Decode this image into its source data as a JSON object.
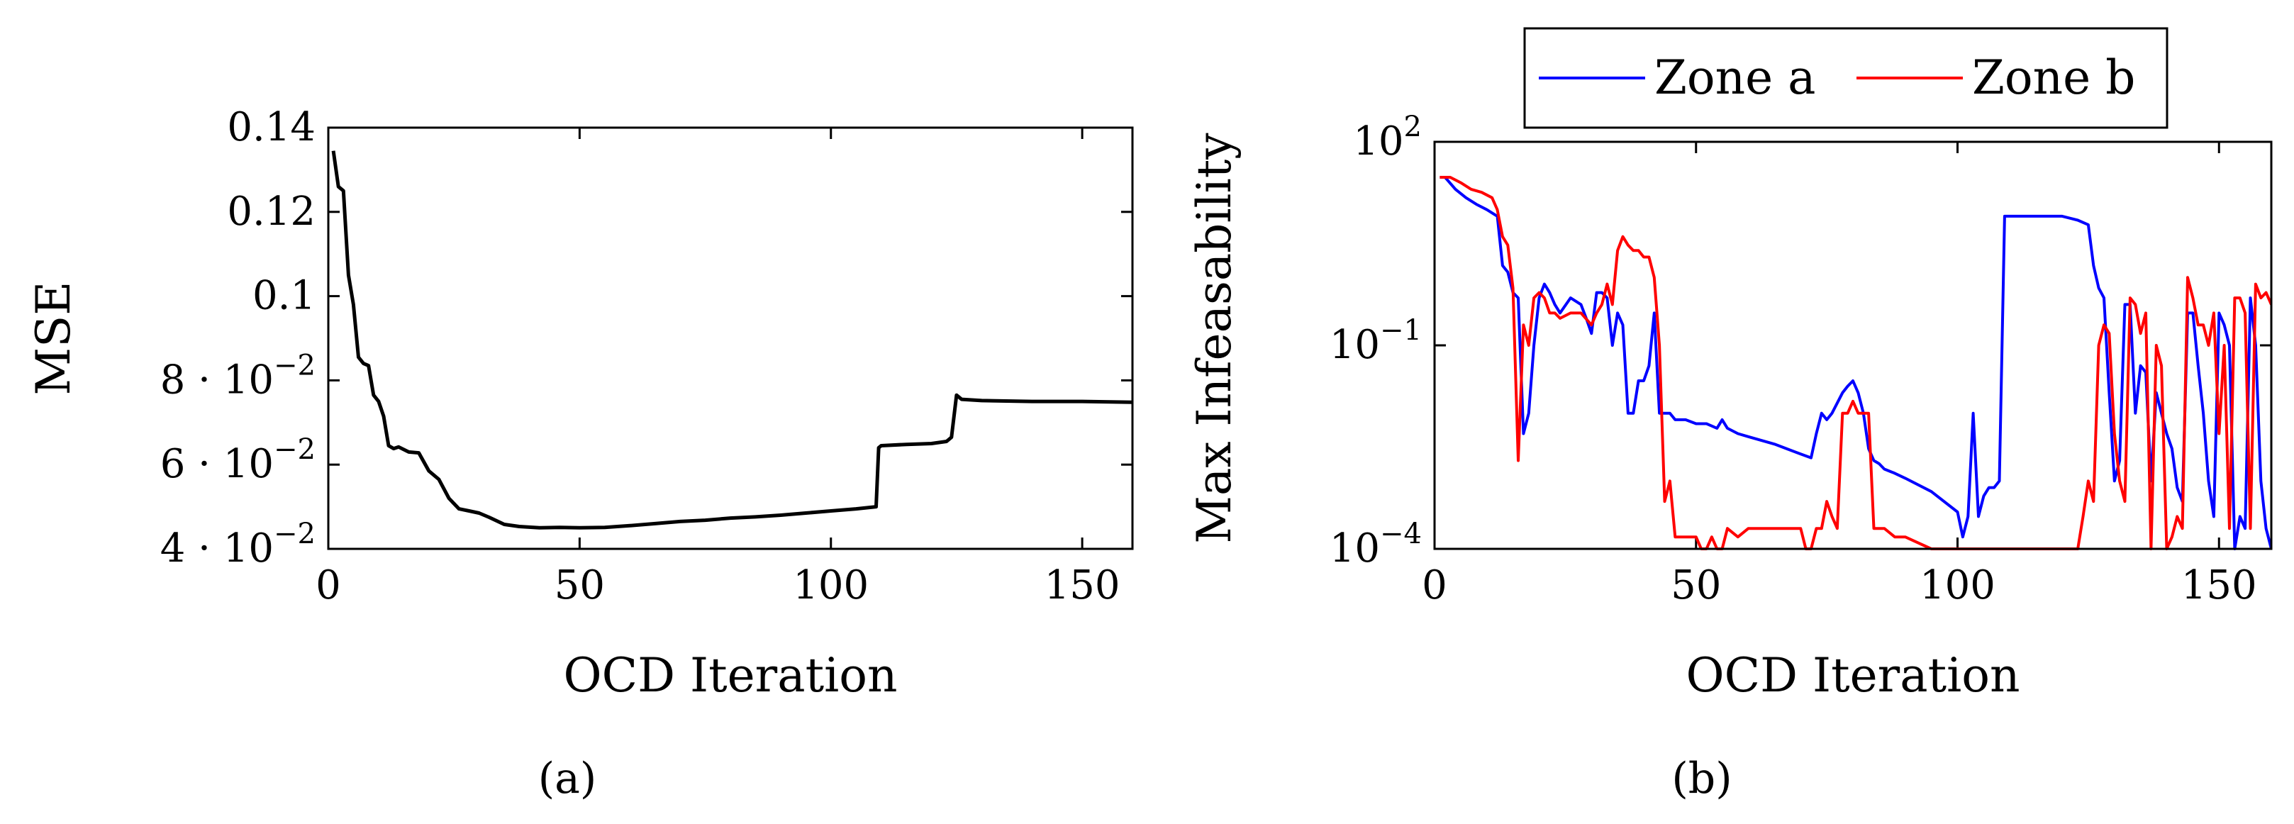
{
  "chart_data": [
    {
      "type": "line",
      "panel": "a",
      "caption": "(a)",
      "xlabel": "OCD Iteration",
      "ylabel": "MSE",
      "xlim": [
        0,
        160
      ],
      "ylim": [
        0.04,
        0.14
      ],
      "yscale": "linear",
      "xticks": [
        0,
        50,
        100,
        150
      ],
      "xtick_labels": [
        "0",
        "50",
        "100",
        "150"
      ],
      "yticks": [
        0.04,
        0.06,
        0.08,
        0.1,
        0.12,
        0.14
      ],
      "ytick_labels": [
        {
          "base": "4 · 10",
          "exp": "−2"
        },
        {
          "base": "6 · 10",
          "exp": "−2"
        },
        {
          "base": "8 · 10",
          "exp": "−2"
        },
        {
          "base": "0.1",
          "exp": ""
        },
        {
          "base": "0.12",
          "exp": ""
        },
        {
          "base": "0.14",
          "exp": ""
        }
      ],
      "series": [
        {
          "name": "MSE",
          "color": "#000000",
          "x": [
            1,
            2,
            3,
            4,
            5,
            6,
            7,
            8,
            9,
            10,
            11,
            12,
            13,
            14,
            16,
            18,
            20,
            22,
            24,
            26,
            28,
            30,
            32,
            35,
            38,
            42,
            46,
            50,
            55,
            60,
            65,
            70,
            75,
            80,
            85,
            90,
            95,
            100,
            105,
            109,
            109.5,
            110,
            115,
            120,
            123,
            124,
            125,
            126,
            130,
            140,
            150,
            160
          ],
          "values": [
            0.1345,
            0.126,
            0.125,
            0.105,
            0.098,
            0.0855,
            0.084,
            0.0835,
            0.0765,
            0.075,
            0.0715,
            0.0645,
            0.0638,
            0.0642,
            0.063,
            0.0628,
            0.0585,
            0.0565,
            0.052,
            0.0495,
            0.049,
            0.0485,
            0.0475,
            0.0458,
            0.0453,
            0.045,
            0.0451,
            0.045,
            0.0451,
            0.0455,
            0.046,
            0.0465,
            0.0468,
            0.0473,
            0.0476,
            0.048,
            0.0485,
            0.049,
            0.0495,
            0.05,
            0.064,
            0.0645,
            0.0648,
            0.065,
            0.0655,
            0.0665,
            0.0765,
            0.0755,
            0.0752,
            0.075,
            0.075,
            0.0748
          ]
        }
      ]
    },
    {
      "type": "line",
      "panel": "b",
      "caption": "(b)",
      "xlabel": "OCD Iteration",
      "ylabel": "Max Infeasability",
      "xlim": [
        0,
        160
      ],
      "ylim": [
        0.0001,
        100
      ],
      "yscale": "log",
      "xticks": [
        0,
        50,
        100,
        150
      ],
      "xtick_labels": [
        "0",
        "50",
        "100",
        "150"
      ],
      "yticks": [
        0.0001,
        0.1,
        100
      ],
      "ytick_labels": [
        {
          "base": "10",
          "exp": "−4"
        },
        {
          "base": "10",
          "exp": "−1"
        },
        {
          "base": "10",
          "exp": "2"
        }
      ],
      "legend": {
        "position": "top-center",
        "entries": [
          "Zone a",
          "Zone b"
        ]
      },
      "series": [
        {
          "name": "Zone a",
          "color": "#0000ff",
          "x": [
            1,
            2,
            4,
            6,
            8,
            10,
            12,
            13,
            14,
            15,
            16,
            17,
            18,
            19,
            20,
            21,
            22,
            23,
            24,
            26,
            28,
            29,
            30,
            31,
            32,
            33,
            34,
            35,
            36,
            37,
            38,
            39,
            40,
            41,
            42,
            43,
            44,
            45,
            46,
            48,
            50,
            52,
            54,
            55,
            56,
            58,
            60,
            65,
            70,
            72,
            73,
            74,
            75,
            76,
            78,
            79,
            80,
            81,
            82,
            83,
            84,
            85,
            86,
            88,
            90,
            95,
            100,
            101,
            102,
            103,
            104,
            105,
            106,
            107,
            108,
            109,
            110,
            115,
            120,
            123,
            125,
            126,
            127,
            128,
            129,
            130,
            131,
            132,
            133,
            134,
            135,
            136,
            137,
            138,
            139,
            140,
            141,
            142,
            143,
            144,
            145,
            146,
            147,
            148,
            149,
            150,
            151,
            152,
            153,
            154,
            155,
            156,
            157,
            158,
            159,
            160
          ],
          "values": [
            30,
            30,
            20,
            15,
            12,
            10,
            8,
            1.5,
            1.2,
            0.6,
            0.5,
            0.005,
            0.01,
            0.1,
            0.5,
            0.8,
            0.6,
            0.4,
            0.3,
            0.5,
            0.4,
            0.25,
            0.15,
            0.6,
            0.6,
            0.5,
            0.1,
            0.3,
            0.2,
            0.01,
            0.01,
            0.03,
            0.03,
            0.05,
            0.3,
            0.01,
            0.01,
            0.01,
            0.008,
            0.008,
            0.007,
            0.007,
            0.006,
            0.008,
            0.006,
            0.005,
            0.0045,
            0.0035,
            0.0025,
            0.0022,
            0.005,
            0.01,
            0.008,
            0.01,
            0.02,
            0.025,
            0.03,
            0.02,
            0.01,
            0.003,
            0.002,
            0.0018,
            0.0015,
            0.0013,
            0.0011,
            0.0007,
            0.00035,
            0.00015,
            0.0003,
            0.01,
            0.0003,
            0.0006,
            0.0008,
            0.0008,
            0.001,
            8,
            8,
            8,
            8,
            7,
            6,
            1.5,
            0.7,
            0.5,
            0.02,
            0.001,
            0.002,
            0.4,
            0.4,
            0.01,
            0.05,
            0.04,
            0.001,
            0.02,
            0.01,
            0.005,
            0.003,
            0.0008,
            0.0005,
            0.3,
            0.3,
            0.05,
            0.01,
            0.001,
            0.0003,
            0.3,
            0.2,
            0.1,
            0.0001,
            0.0003,
            0.0002,
            0.5,
            0.1,
            0.001,
            0.0002,
            0.0001
          ]
        },
        {
          "name": "Zone b",
          "color": "#ff0000",
          "x": [
            1,
            3,
            5,
            7,
            9,
            11,
            12,
            13,
            14,
            15,
            16,
            17,
            18,
            19,
            20,
            21,
            22,
            23,
            24,
            26,
            28,
            30,
            31,
            32,
            33,
            34,
            35,
            36,
            37,
            38,
            39,
            40,
            41,
            42,
            43,
            44,
            45,
            46,
            47,
            48,
            49,
            50,
            51,
            52,
            53,
            54,
            55,
            56,
            58,
            60,
            65,
            70,
            71,
            72,
            73,
            74,
            75,
            76,
            77,
            78,
            79,
            80,
            81,
            82,
            83,
            84,
            85,
            86,
            88,
            90,
            95,
            100,
            101,
            102,
            103,
            104,
            105,
            106,
            107,
            108,
            110,
            112,
            114,
            116,
            118,
            120,
            122,
            123,
            124,
            125,
            126,
            127,
            128,
            129,
            130,
            131,
            132,
            133,
            134,
            135,
            136,
            137,
            138,
            139,
            140,
            141,
            142,
            143,
            144,
            145,
            146,
            147,
            148,
            149,
            150,
            151,
            152,
            153,
            154,
            155,
            156,
            157,
            158,
            159,
            160
          ],
          "values": [
            30,
            30,
            25,
            20,
            18,
            15,
            10,
            4,
            3,
            0.7,
            0.002,
            0.2,
            0.1,
            0.5,
            0.6,
            0.5,
            0.3,
            0.3,
            0.25,
            0.3,
            0.3,
            0.2,
            0.3,
            0.4,
            0.8,
            0.4,
            2.5,
            4,
            3,
            2.5,
            2.5,
            2,
            2,
            1,
            0.1,
            0.0005,
            0.001,
            0.00015,
            0.00015,
            0.00015,
            0.00015,
            0.00015,
            0.0001,
            0.0001,
            0.00015,
            0.0001,
            0.0001,
            0.0002,
            0.00015,
            0.0002,
            0.0002,
            0.0002,
            0.0001,
            0.0001,
            0.0002,
            0.0002,
            0.0005,
            0.0003,
            0.0002,
            0.01,
            0.01,
            0.015,
            0.01,
            0.01,
            0.01,
            0.0002,
            0.0002,
            0.0002,
            0.00015,
            0.00015,
            0.0001,
            0.0001,
            0.0001,
            0.0001,
            0.0001,
            0.0001,
            0.0001,
            0.0001,
            0.0001,
            0.0001,
            0.0001,
            0.0001,
            0.0001,
            0.0001,
            0.0001,
            0.0001,
            0.0001,
            0.0001,
            0.0003,
            0.001,
            0.0005,
            0.1,
            0.2,
            0.15,
            0.005,
            0.001,
            0.0005,
            0.5,
            0.4,
            0.15,
            0.3,
            0.0001,
            0.1,
            0.05,
            0.0001,
            0.00015,
            0.0003,
            0.0002,
            1,
            0.5,
            0.2,
            0.2,
            0.1,
            0.3,
            0.005,
            0.1,
            0.0002,
            0.5,
            0.5,
            0.3,
            0.0002,
            0.8,
            0.5,
            0.6,
            0.4
          ]
        }
      ]
    }
  ]
}
